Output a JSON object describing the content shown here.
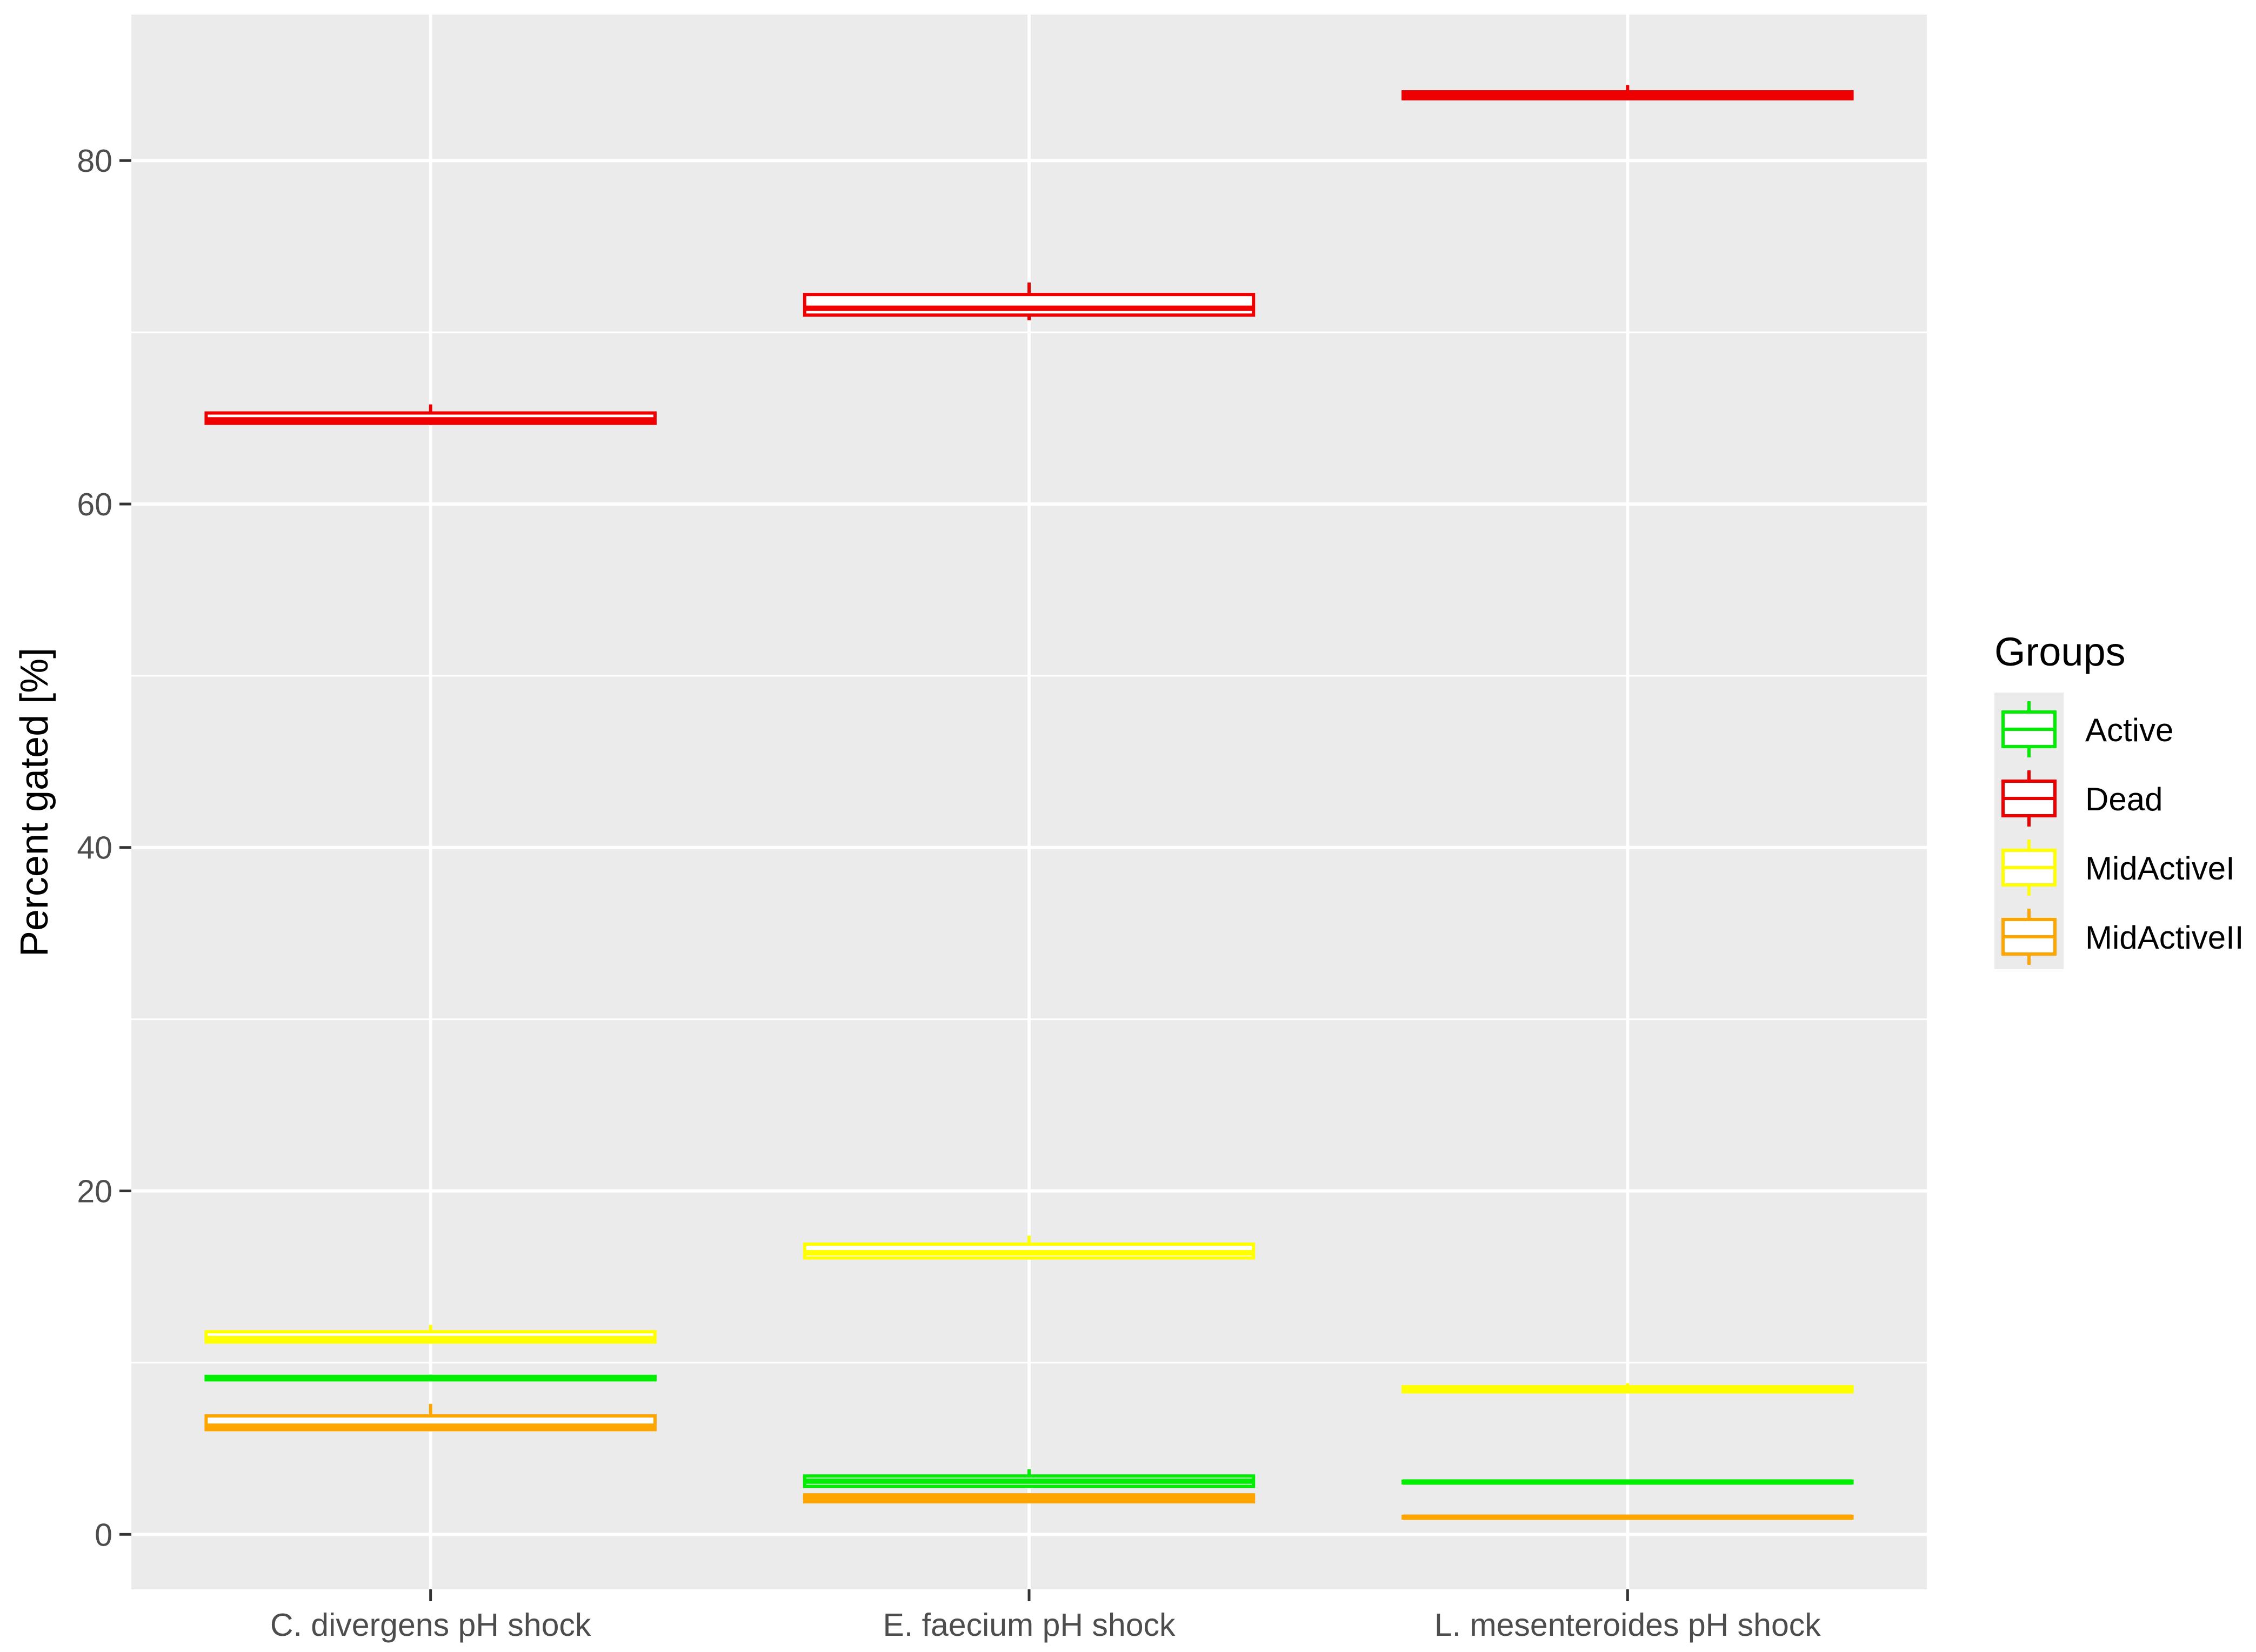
{
  "chart_data": {
    "type": "boxplot",
    "ylabel": "Percent gated [%]",
    "xlabel": "",
    "ylim": [
      -3.2,
      88.5
    ],
    "yticks": [
      0,
      20,
      40,
      60,
      80
    ],
    "grid": true,
    "legend": {
      "title": "Groups",
      "position": "right",
      "entries": [
        "Active",
        "Dead",
        "MidActiveI",
        "MidActiveII"
      ]
    },
    "categories": [
      "C. divergens pH shock",
      "E. faecium pH shock",
      "L. mesenteroides pH shock"
    ],
    "series": [
      {
        "name": "Active",
        "color": "#00ee00",
        "boxes": [
          {
            "min": 9.0,
            "q1": 9.0,
            "median": 9.1,
            "q3": 9.2,
            "max": 9.3
          },
          {
            "min": 2.7,
            "q1": 2.8,
            "median": 3.1,
            "q3": 3.4,
            "max": 3.8
          },
          {
            "min": 3.0,
            "q1": 3.0,
            "median": 3.05,
            "q3": 3.1,
            "max": 3.1
          }
        ]
      },
      {
        "name": "Dead",
        "color": "#ee0000",
        "boxes": [
          {
            "min": 64.6,
            "q1": 64.7,
            "median": 64.9,
            "q3": 65.3,
            "max": 65.8
          },
          {
            "min": 70.7,
            "q1": 71.0,
            "median": 71.4,
            "q3": 72.2,
            "max": 72.9
          },
          {
            "min": 83.6,
            "q1": 83.6,
            "median": 83.8,
            "q3": 84.0,
            "max": 84.4
          }
        ]
      },
      {
        "name": "MidActiveI",
        "color": "#ffff00",
        "boxes": [
          {
            "min": 11.1,
            "q1": 11.2,
            "median": 11.4,
            "q3": 11.8,
            "max": 12.2
          },
          {
            "min": 16.0,
            "q1": 16.1,
            "median": 16.4,
            "q3": 16.9,
            "max": 17.4
          },
          {
            "min": 8.3,
            "q1": 8.3,
            "median": 8.5,
            "q3": 8.6,
            "max": 8.8
          }
        ]
      },
      {
        "name": "MidActiveII",
        "color": "#ffa500",
        "boxes": [
          {
            "min": 6.0,
            "q1": 6.1,
            "median": 6.3,
            "q3": 6.9,
            "max": 7.6
          },
          {
            "min": 1.9,
            "q1": 1.9,
            "median": 2.1,
            "q3": 2.3,
            "max": 2.4
          },
          {
            "min": 0.9,
            "q1": 0.95,
            "median": 1.0,
            "q3": 1.05,
            "max": 1.1
          }
        ]
      }
    ]
  }
}
